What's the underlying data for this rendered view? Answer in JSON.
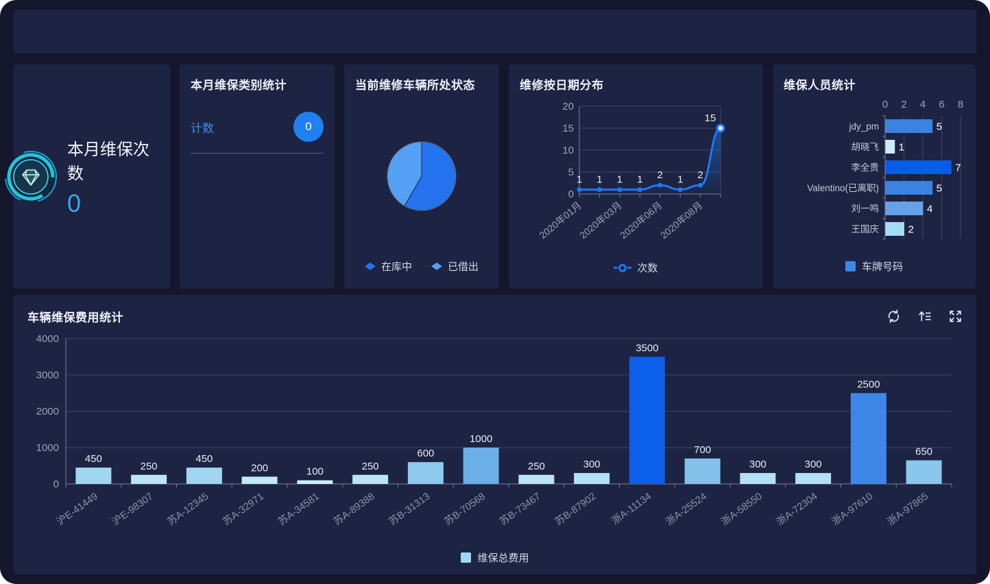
{
  "topbar": {},
  "cards": {
    "monthly_count": {
      "title": "本月维保次数",
      "value": "0",
      "icon": "gem-icon",
      "value_color": "#3aa5f0"
    },
    "category_stats": {
      "title": "本月维保类别统计",
      "row_label": "计数",
      "badge_value": "0",
      "badge_color": "#2080f0"
    },
    "vehicle_status": {
      "title": "当前维修车辆所处状态",
      "legend": [
        "在库中",
        "已借出"
      ]
    },
    "date_distribution": {
      "title": "维修按日期分布",
      "legend": "次数"
    },
    "staff_stats": {
      "title": "维保人员统计",
      "legend": "车牌号码"
    }
  },
  "bottom_panel": {
    "title": "车辆维保费用统计",
    "legend": "维保总费用",
    "icons": [
      "refresh-icon",
      "sort-top-icon",
      "fullscreen-expand-icon"
    ]
  },
  "chart_data": [
    {
      "id": "vehicle_status_pie",
      "type": "pie",
      "title": "当前维修车辆所处状态",
      "labels": [
        "在库中",
        "已借出"
      ],
      "values": [
        7,
        5
      ],
      "colors": [
        "#2472ee",
        "#54a0f4"
      ],
      "legend_position": "bottom"
    },
    {
      "id": "repair_by_date_line",
      "type": "line",
      "title": "维修按日期分布",
      "series_name": "次数",
      "x_tick_labels": [
        "2020年01月",
        "2020年03月",
        "2020年06月",
        "2020年08月"
      ],
      "x_tick_indices": [
        0,
        2,
        4,
        6
      ],
      "values": [
        1,
        1,
        1,
        1,
        2,
        1,
        2,
        15
      ],
      "value_labels": [
        "1",
        "1",
        "1",
        "1",
        "2",
        "1",
        "2",
        "15"
      ],
      "ylim": [
        0,
        20
      ],
      "y_ticks": [
        0,
        5,
        10,
        15,
        20
      ],
      "line_color": "#1e78f0",
      "grid": true,
      "legend_position": "bottom"
    },
    {
      "id": "staff_hbar",
      "type": "bar",
      "orientation": "horizontal",
      "title": "维保人员统计",
      "series_name": "车牌号码",
      "categories": [
        "jdy_pm",
        "胡晓飞",
        "李全贵",
        "Valentino(已离职)",
        "刘一鸣",
        "王国庆"
      ],
      "values": [
        5,
        1,
        7,
        5,
        4,
        2
      ],
      "bar_colors": [
        "#3b82e2",
        "#c9edf8",
        "#085ce6",
        "#3b82e2",
        "#63a2e8",
        "#a5dcf4"
      ],
      "legend_color": "#3d87e9",
      "xlim": [
        0,
        8
      ],
      "x_ticks": [
        0,
        2,
        4,
        6,
        8
      ],
      "legend_position": "bottom"
    },
    {
      "id": "cost_bar",
      "type": "bar",
      "orientation": "vertical",
      "title": "车辆维保费用统计",
      "series_name": "维保总费用",
      "categories": [
        "沪E-41449",
        "沪E-98307",
        "苏A-12345",
        "苏A-32971",
        "苏A-34581",
        "苏A-89388",
        "苏B-31313",
        "苏B-70568",
        "苏B-73467",
        "苏B-87902",
        "浙A-11134",
        "浙A-25524",
        "浙A-58550",
        "浙A-72304",
        "浙A-97610",
        "浙A-97865"
      ],
      "values": [
        450,
        250,
        450,
        200,
        100,
        250,
        600,
        1000,
        250,
        300,
        3500,
        700,
        300,
        300,
        2500,
        650
      ],
      "bar_colors": [
        "#a0d6f0",
        "#bce4f6",
        "#a0d6f0",
        "#c3e9f7",
        "#cdeef9",
        "#bce4f6",
        "#8fc9ed",
        "#6caee7",
        "#bce4f6",
        "#b3e0f4",
        "#0c5fe8",
        "#84c1ea",
        "#b3e0f4",
        "#b3e0f4",
        "#3e87e9",
        "#8bc7ec"
      ],
      "legend_color": "#9fd9f2",
      "ylim": [
        0,
        4000
      ],
      "y_ticks": [
        0,
        1000,
        2000,
        3000,
        4000
      ],
      "legend_position": "bottom"
    }
  ]
}
